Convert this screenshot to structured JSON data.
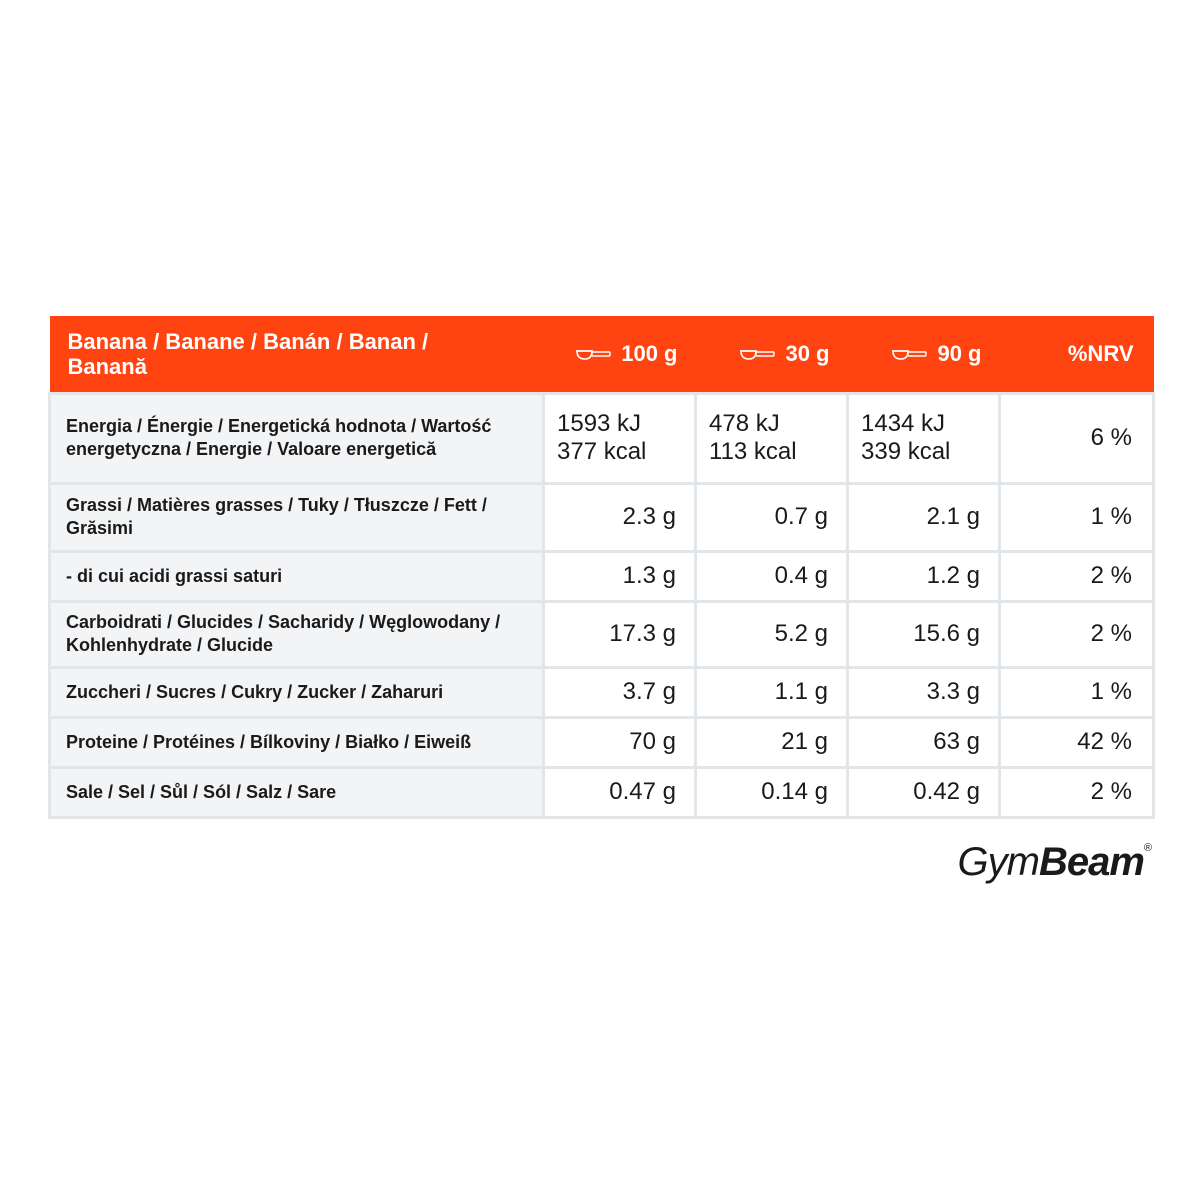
{
  "header": {
    "title": "Banana / Banane / Banán / Banan / Banană",
    "col1": "100 g",
    "col2": "30 g",
    "col3": "90 g",
    "nrv": "%NRV",
    "scoop_icon": "scoop-icon"
  },
  "rows": [
    {
      "label": "Energia / Énergie / Energetická hodnota / Wartość energetyczna / Energie / Valoare energetică",
      "v100": [
        "1593 kJ",
        "377 kcal"
      ],
      "v30": [
        "478 kJ",
        "113 kcal"
      ],
      "v90": [
        "1434 kJ",
        "339 kcal"
      ],
      "nrv": "6 %"
    },
    {
      "label": "Grassi / Matières grasses / Tuky / Tłuszcze / Fett / Grăsimi",
      "v100": "2.3 g",
      "v30": "0.7 g",
      "v90": "2.1 g",
      "nrv": "1 %"
    },
    {
      "label": "- di cui acidi grassi saturi",
      "v100": "1.3 g",
      "v30": "0.4 g",
      "v90": "1.2 g",
      "nrv": "2 %"
    },
    {
      "label": "Carboidrati / Glucides / Sacharidy / Węglowodany / Kohlenhydrate / Glucide",
      "v100": "17.3 g",
      "v30": "5.2 g",
      "v90": "15.6 g",
      "nrv": "2 %"
    },
    {
      "label": "Zuccheri / Sucres / Cukry / Zucker / Zaharuri",
      "v100": "3.7 g",
      "v30": "1.1 g",
      "v90": "3.3 g",
      "nrv": "1 %"
    },
    {
      "label": "Proteine / Protéines / Bílkoviny / Białko / Eiweiß",
      "v100": "70 g",
      "v30": "21 g",
      "v90": "63 g",
      "nrv": "42 %"
    },
    {
      "label": "Sale / Sel / Sůl / Sól / Salz / Sare",
      "v100": "0.47 g",
      "v30": "0.14 g",
      "v90": "0.42 g",
      "nrv": "2 %"
    }
  ],
  "logo": {
    "part1": "Gym",
    "part2": "Beam",
    "mark": "®"
  },
  "colors": {
    "header_bg": "#ff4411",
    "label_bg": "#f3f4f6",
    "border": "#e3e6e9"
  }
}
